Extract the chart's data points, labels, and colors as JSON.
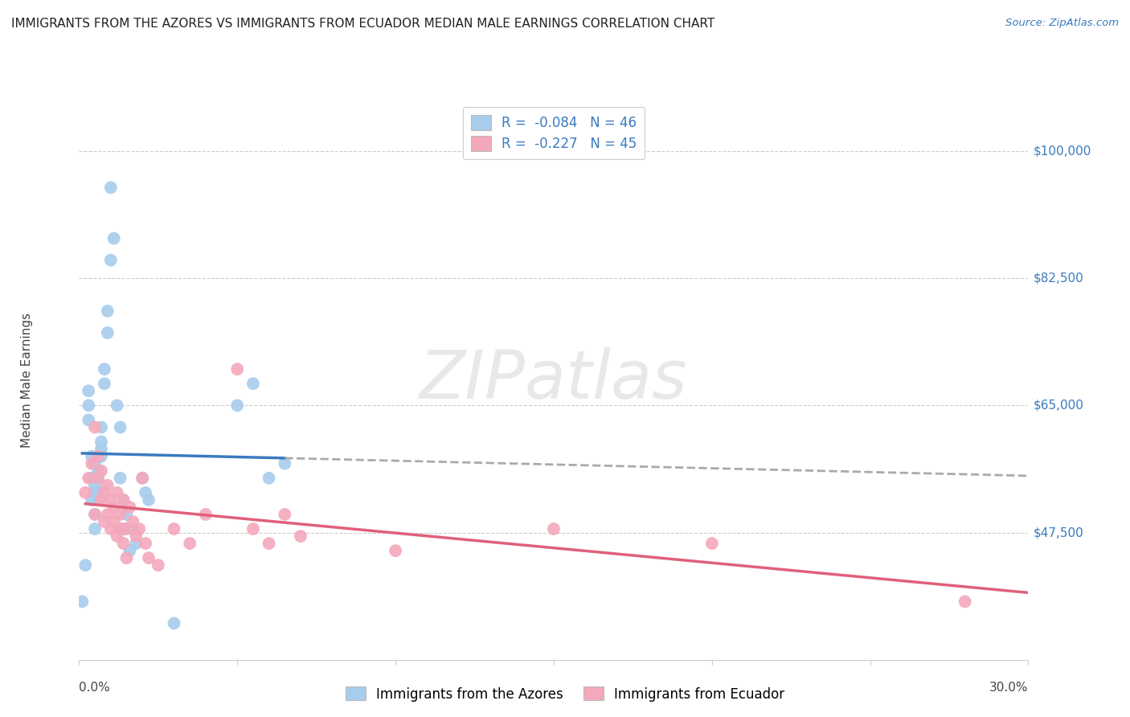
{
  "title": "IMMIGRANTS FROM THE AZORES VS IMMIGRANTS FROM ECUADOR MEDIAN MALE EARNINGS CORRELATION CHART",
  "source": "Source: ZipAtlas.com",
  "ylabel": "Median Male Earnings",
  "yticks": [
    47500,
    65000,
    82500,
    100000
  ],
  "ytick_labels": [
    "$47,500",
    "$65,000",
    "$82,500",
    "$100,000"
  ],
  "xlim": [
    0.0,
    0.3
  ],
  "ylim": [
    30000,
    107000
  ],
  "legend_r1": "-0.084",
  "legend_n1": "46",
  "legend_r2": "-0.227",
  "legend_n2": "45",
  "legend_label1": "Immigrants from the Azores",
  "legend_label2": "Immigrants from Ecuador",
  "color_blue": "#a8ccec",
  "color_pink": "#f4a8bc",
  "color_line_blue": "#3a7abf",
  "color_line_pink": "#e0607a",
  "color_line_dashed": "#aaaaaa",
  "color_text_blue": "#3a7abf",
  "background": "#ffffff",
  "azores_x": [
    0.001,
    0.002,
    0.003,
    0.003,
    0.003,
    0.004,
    0.004,
    0.004,
    0.005,
    0.005,
    0.005,
    0.005,
    0.005,
    0.005,
    0.006,
    0.006,
    0.006,
    0.006,
    0.007,
    0.007,
    0.007,
    0.007,
    0.008,
    0.008,
    0.009,
    0.009,
    0.01,
    0.01,
    0.011,
    0.012,
    0.013,
    0.013,
    0.014,
    0.014,
    0.015,
    0.016,
    0.017,
    0.018,
    0.02,
    0.021,
    0.022,
    0.05,
    0.055,
    0.06,
    0.065,
    0.03
  ],
  "azores_y": [
    38000,
    43000,
    65000,
    67000,
    63000,
    55000,
    58000,
    52000,
    53000,
    57000,
    53000,
    50000,
    54000,
    48000,
    53000,
    55000,
    52000,
    56000,
    59000,
    62000,
    60000,
    58000,
    68000,
    70000,
    75000,
    78000,
    85000,
    95000,
    88000,
    65000,
    62000,
    55000,
    52000,
    48000,
    50000,
    45000,
    48000,
    46000,
    55000,
    53000,
    52000,
    65000,
    68000,
    55000,
    57000,
    35000
  ],
  "ecuador_x": [
    0.002,
    0.003,
    0.004,
    0.005,
    0.005,
    0.006,
    0.006,
    0.007,
    0.007,
    0.008,
    0.008,
    0.009,
    0.009,
    0.01,
    0.01,
    0.011,
    0.011,
    0.012,
    0.012,
    0.013,
    0.013,
    0.014,
    0.014,
    0.015,
    0.015,
    0.016,
    0.017,
    0.018,
    0.019,
    0.02,
    0.021,
    0.022,
    0.025,
    0.03,
    0.035,
    0.04,
    0.055,
    0.06,
    0.065,
    0.07,
    0.1,
    0.15,
    0.2,
    0.28,
    0.05
  ],
  "ecuador_y": [
    53000,
    55000,
    57000,
    62000,
    50000,
    55000,
    58000,
    52000,
    56000,
    53000,
    49000,
    54000,
    50000,
    52000,
    48000,
    51000,
    49000,
    53000,
    47000,
    50000,
    48000,
    52000,
    46000,
    48000,
    44000,
    51000,
    49000,
    47000,
    48000,
    55000,
    46000,
    44000,
    43000,
    48000,
    46000,
    50000,
    48000,
    46000,
    50000,
    47000,
    45000,
    48000,
    46000,
    38000,
    70000
  ]
}
